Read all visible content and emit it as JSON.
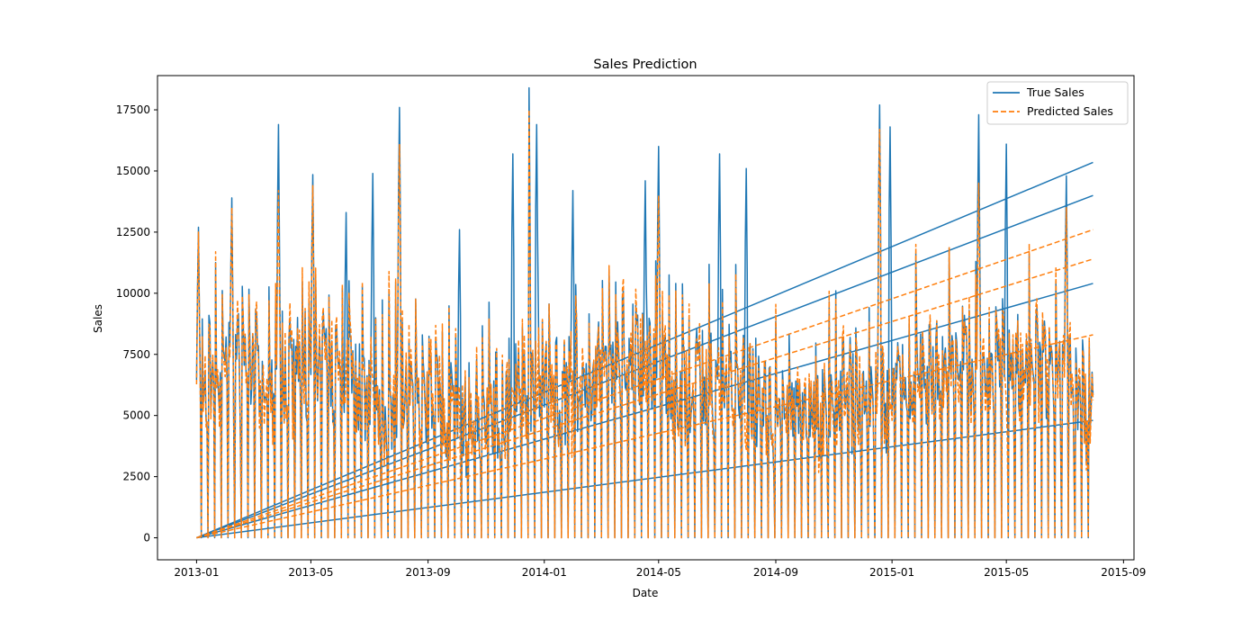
{
  "chart_data": {
    "type": "line",
    "title": "Sales Prediction",
    "xlabel": "Date",
    "ylabel": "Sales",
    "x_type": "date",
    "xlim": [
      "2012-11-21",
      "2015-09-12"
    ],
    "ylim": [
      -900,
      18900
    ],
    "x_ticks": [
      "2013-01-01",
      "2013-05-01",
      "2013-09-01",
      "2014-01-01",
      "2014-05-01",
      "2014-09-01",
      "2015-01-01",
      "2015-05-01",
      "2015-09-01"
    ],
    "x_tick_labels": [
      "2013-01",
      "2013-05",
      "2013-09",
      "2014-01",
      "2014-05",
      "2014-09",
      "2015-01",
      "2015-05",
      "2015-09"
    ],
    "y_ticks": [
      0,
      2500,
      5000,
      7500,
      10000,
      12500,
      15000,
      17500
    ],
    "y_tick_labels": [
      "0",
      "2500",
      "5000",
      "7500",
      "10000",
      "12500",
      "15000",
      "17500"
    ],
    "grid": false,
    "legend_position": "top-right",
    "date_range": [
      "2013-01-01",
      "2015-07-31"
    ],
    "series": [
      {
        "name": "True Sales",
        "color": "#1f77b4",
        "style": "solid",
        "peaks": [
          {
            "x": "2013-01-03",
            "y": 12700
          },
          {
            "x": "2013-02-07",
            "y": 13900
          },
          {
            "x": "2013-03-28",
            "y": 16900
          },
          {
            "x": "2013-05-03",
            "y": 14850
          },
          {
            "x": "2013-06-07",
            "y": 13300
          },
          {
            "x": "2013-07-05",
            "y": 14900
          },
          {
            "x": "2013-08-02",
            "y": 17600
          },
          {
            "x": "2013-10-04",
            "y": 12600
          },
          {
            "x": "2013-11-29",
            "y": 15700
          },
          {
            "x": "2013-12-16",
            "y": 18400
          },
          {
            "x": "2013-12-24",
            "y": 16900
          },
          {
            "x": "2014-01-31",
            "y": 14200
          },
          {
            "x": "2014-04-17",
            "y": 14600
          },
          {
            "x": "2014-05-01",
            "y": 16000
          },
          {
            "x": "2014-07-04",
            "y": 15700
          },
          {
            "x": "2014-08-01",
            "y": 15100
          },
          {
            "x": "2014-12-19",
            "y": 17700
          },
          {
            "x": "2014-12-30",
            "y": 16800
          },
          {
            "x": "2015-04-02",
            "y": 17300
          },
          {
            "x": "2015-05-01",
            "y": 16100
          },
          {
            "x": "2015-07-03",
            "y": 14800
          }
        ],
        "trend_lines_end": [
          15350,
          14000,
          10400,
          4800
        ]
      },
      {
        "name": "Predicted Sales",
        "color": "#ff7f0e",
        "style": "dashed",
        "peaks": [
          {
            "x": "2013-01-03",
            "y": 12500
          },
          {
            "x": "2013-02-07",
            "y": 13500
          },
          {
            "x": "2013-03-28",
            "y": 14200
          },
          {
            "x": "2013-05-03",
            "y": 14400
          },
          {
            "x": "2013-08-02",
            "y": 16100
          },
          {
            "x": "2013-12-16",
            "y": 17500
          },
          {
            "x": "2014-05-01",
            "y": 14000
          },
          {
            "x": "2014-12-19",
            "y": 16700
          },
          {
            "x": "2015-04-02",
            "y": 14500
          },
          {
            "x": "2015-07-03",
            "y": 13500
          }
        ],
        "trend_lines_end": [
          12600,
          11400,
          8300
        ]
      }
    ]
  }
}
